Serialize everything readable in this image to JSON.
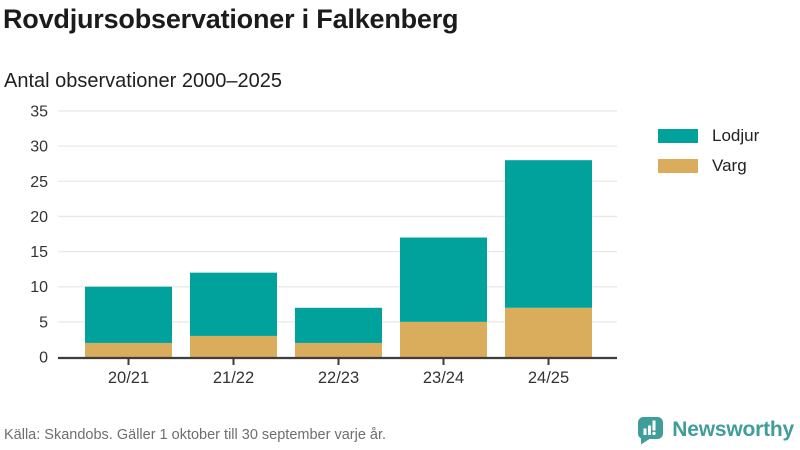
{
  "header": {
    "title": "Rovdjursobservationer i Falkenberg",
    "subtitle": "Antal observationer 2000–2025"
  },
  "chart_data": {
    "type": "bar",
    "stacked": true,
    "categories": [
      "20/21",
      "21/22",
      "22/23",
      "23/24",
      "24/25"
    ],
    "series": [
      {
        "name": "Lodjur",
        "color": "#00a29b",
        "values": [
          8,
          9,
          5,
          12,
          21
        ]
      },
      {
        "name": "Varg",
        "color": "#d9ad5c",
        "values": [
          2,
          3,
          2,
          5,
          7
        ]
      }
    ],
    "totals": [
      10,
      12,
      7,
      17,
      28
    ],
    "title": "Antal observationer 2000–2025",
    "xlabel": "",
    "ylabel": "",
    "ylim": [
      0,
      35
    ],
    "ytick_step": 5,
    "yticks": [
      0,
      5,
      10,
      15,
      20,
      25,
      30,
      35
    ],
    "grid": true,
    "gridline_color": "#e8e8e8",
    "axis_color": "#3d3d3d",
    "tick_label_color": "#333333",
    "legend_position": "right"
  },
  "footer": {
    "source": "Källa: Skandobs. Gäller 1 oktober till 30 september varje år."
  },
  "branding": {
    "name": "Newsworthy",
    "logo_icon": "bar-chart-speech-bubble-icon",
    "color": "#3f9e99"
  }
}
